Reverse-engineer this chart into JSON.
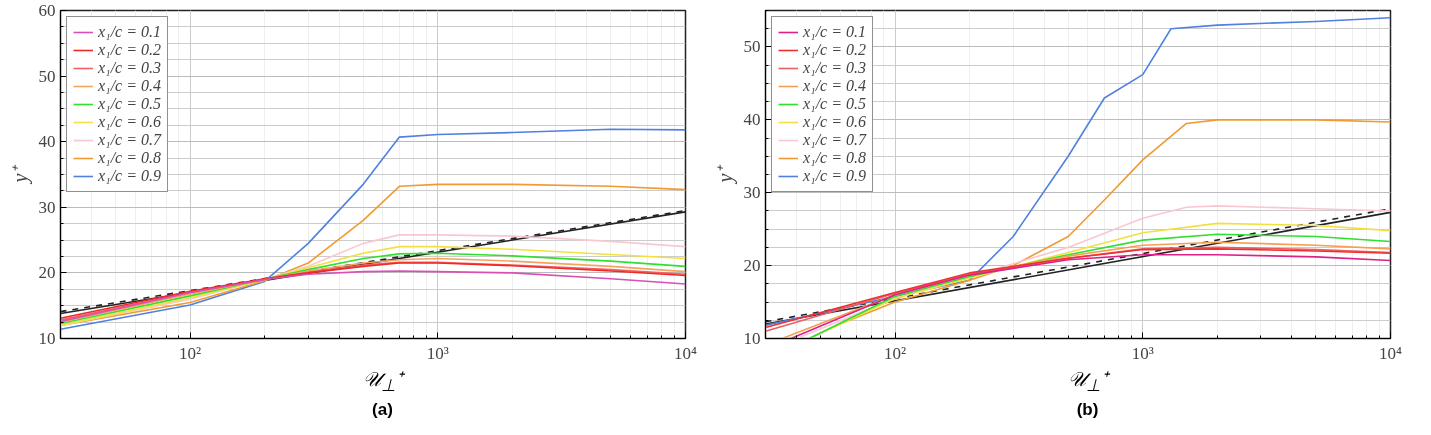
{
  "chart_data": [
    {
      "type": "line",
      "title": "(a)",
      "xlabel": "𝒰$_{⊥}$⁺",
      "ylabel": "y⁺",
      "log": "x",
      "xlim": [
        30,
        10000
      ],
      "ylim": [
        10,
        60
      ],
      "xticks": [
        {
          "value": 100,
          "label": "10²"
        },
        {
          "value": 1000,
          "label": "10³"
        },
        {
          "value": 10000,
          "label": "10⁴"
        }
      ],
      "yticks": [
        10,
        20,
        30,
        40,
        50,
        60
      ],
      "grid": true,
      "legend": "top left",
      "series": [
        {
          "name": "x₁/c = 0.1",
          "color": "#d94fb8",
          "x": [
            30,
            100,
            200,
            300,
            500,
            700,
            1000,
            2000,
            5000,
            10000
          ],
          "values": [
            12.6,
            17,
            19,
            19.8,
            20.2,
            20.3,
            20.2,
            20,
            19.1,
            18.3
          ]
        },
        {
          "name": "x₁/c = 0.2",
          "color": "#f02828",
          "x": [
            30,
            100,
            200,
            300,
            500,
            700,
            1000,
            2000,
            5000,
            10000
          ],
          "values": [
            13.1,
            17.2,
            19.1,
            20,
            21,
            21.5,
            21.5,
            21.1,
            20.3,
            19.6
          ]
        },
        {
          "name": "x₁/c = 0.3",
          "color": "#f26060",
          "x": [
            30,
            100,
            200,
            300,
            500,
            700,
            1000,
            2000,
            5000,
            10000
          ],
          "values": [
            12.8,
            17,
            19,
            20.1,
            21.2,
            21.6,
            21.6,
            21.2,
            20.5,
            19.8
          ]
        },
        {
          "name": "x₁/c = 0.4",
          "color": "#f5a460",
          "x": [
            30,
            100,
            200,
            300,
            500,
            700,
            1000,
            2000,
            5000,
            10000
          ],
          "values": [
            12.5,
            16.8,
            19,
            20.3,
            21.5,
            22,
            22.2,
            21.8,
            21,
            20.2
          ]
        },
        {
          "name": "x₁/c = 0.5",
          "color": "#30e030",
          "x": [
            30,
            100,
            300,
            500,
            700,
            1000,
            2000,
            5000,
            10000
          ],
          "values": [
            12.3,
            16.5,
            20.5,
            22.2,
            22.9,
            23,
            22.6,
            21.8,
            21
          ]
        },
        {
          "name": "x₁/c = 0.6",
          "color": "#f2e040",
          "x": [
            30,
            100,
            200,
            300,
            500,
            700,
            1000,
            2000,
            5000,
            10000
          ],
          "values": [
            12,
            16.2,
            19,
            20.8,
            23,
            24,
            24,
            23.6,
            22.8,
            22.2
          ]
        },
        {
          "name": "x₁/c = 0.7",
          "color": "#f8c8d0",
          "x": [
            30,
            100,
            200,
            300,
            500,
            700,
            1000,
            2000,
            5000,
            10000
          ],
          "values": [
            12,
            16,
            19,
            21,
            24.5,
            25.8,
            25.8,
            25.6,
            24.8,
            24
          ]
        },
        {
          "name": "x₁/c = 0.8",
          "color": "#f09a30",
          "x": [
            30,
            100,
            200,
            300,
            500,
            700,
            1000,
            2000,
            5000,
            10000
          ],
          "values": [
            12,
            15.5,
            18.8,
            21.5,
            28,
            33.2,
            33.5,
            33.5,
            33.2,
            32.7
          ]
        },
        {
          "name": "x₁/c = 0.9",
          "color": "#5080e0",
          "x": [
            30,
            100,
            200,
            300,
            500,
            700,
            1000,
            2000,
            5000,
            10000
          ],
          "values": [
            11.4,
            15.1,
            18.7,
            24.5,
            33.5,
            40.7,
            41.1,
            41.4,
            41.9,
            41.8
          ]
        },
        {
          "color": "#222222",
          "x": [
            30,
            10000
          ],
          "values": [
            13.8,
            29.3
          ]
        },
        {
          "color": "#222222",
          "line_style": "dashed",
          "x": [
            30,
            10000
          ],
          "values": [
            14.1,
            29.5
          ]
        }
      ]
    },
    {
      "type": "line",
      "title": "(b)",
      "xlabel": "𝒰$_{⊥}$⁺",
      "ylabel": "y⁺",
      "log": "x",
      "xlim": [
        30,
        10000
      ],
      "ylim": [
        10,
        55
      ],
      "xticks": [
        {
          "value": 100,
          "label": "10²"
        },
        {
          "value": 1000,
          "label": "10³"
        },
        {
          "value": 10000,
          "label": "10⁴"
        }
      ],
      "yticks": [
        10,
        20,
        30,
        40,
        50
      ],
      "grid": true,
      "legend": "top left",
      "series": [
        {
          "name": "x₁/c = 0.1",
          "color": "#e0208a",
          "x": [
            38,
            100,
            200,
            500,
            1000,
            2000,
            5000,
            10000
          ],
          "values": [
            10,
            16,
            18.7,
            20.8,
            21.5,
            21.5,
            21.2,
            20.7
          ]
        },
        {
          "name": "x₁/c = 0.2",
          "color": "#f03030",
          "x": [
            30,
            100,
            200,
            500,
            1000,
            2000,
            5000,
            10000
          ],
          "values": [
            11.5,
            16.3,
            19,
            21,
            22.2,
            22.3,
            22,
            21.7
          ]
        },
        {
          "name": "x₁/c = 0.3",
          "color": "#e86060",
          "x": [
            30,
            100,
            200,
            500,
            1000,
            2000,
            5000,
            10000
          ],
          "values": [
            11,
            16.2,
            18.8,
            21,
            22.3,
            22.5,
            22.2,
            21.8
          ]
        },
        {
          "name": "x₁/c = 0.4",
          "color": "#f5a050",
          "x": [
            35,
            100,
            200,
            500,
            1000,
            2000,
            5000,
            10000
          ],
          "values": [
            10,
            16,
            18.7,
            21.3,
            22.8,
            23.2,
            22.8,
            22.3
          ]
        },
        {
          "name": "x₁/c = 0.5",
          "color": "#30e030",
          "x": [
            45,
            100,
            200,
            500,
            1000,
            2000,
            5000,
            10000
          ],
          "values": [
            10,
            15.8,
            18.5,
            21.5,
            23.5,
            24.3,
            24,
            23.3
          ]
        },
        {
          "name": "x₁/c = 0.6",
          "color": "#f2e040",
          "x": [
            45,
            100,
            200,
            500,
            1000,
            2000,
            5000,
            10000
          ],
          "values": [
            10,
            15.5,
            18.3,
            21.8,
            24.5,
            25.8,
            25.5,
            24.8
          ]
        },
        {
          "name": "x₁/c = 0.7",
          "color": "#f8c8d0",
          "x": [
            40,
            100,
            200,
            500,
            1000,
            1500,
            2000,
            5000,
            10000
          ],
          "values": [
            10,
            15.5,
            18.5,
            22.5,
            26.5,
            28,
            28.2,
            27.8,
            27.5
          ]
        },
        {
          "name": "x₁/c = 0.8",
          "color": "#f09a30",
          "x": [
            45,
            60,
            100,
            200,
            300,
            500,
            700,
            1000,
            1500,
            2000,
            5000,
            10000
          ],
          "values": [
            10,
            12,
            15,
            18,
            20,
            24,
            29,
            34.5,
            39.5,
            40,
            40,
            39.7
          ]
        },
        {
          "name": "x₁/c = 0.9",
          "color": "#5080e0",
          "x": [
            30,
            100,
            200,
            300,
            500,
            700,
            1000,
            1300,
            2000,
            5000,
            10000
          ],
          "values": [
            11.8,
            15.8,
            18,
            24,
            35,
            43,
            46.2,
            52.5,
            53,
            53.5,
            54
          ]
        },
        {
          "color": "#222222",
          "x": [
            30,
            10000
          ],
          "values": [
            12,
            27.3
          ]
        },
        {
          "color": "#222222",
          "line_style": "dashed",
          "x": [
            30,
            10000
          ],
          "values": [
            12.3,
            27.8
          ]
        }
      ]
    }
  ]
}
